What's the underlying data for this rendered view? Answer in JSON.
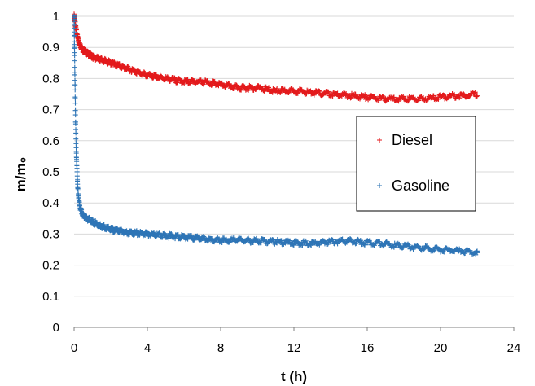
{
  "chart_data": {
    "type": "scatter",
    "title": "",
    "xlabel": "t (h)",
    "ylabel": "m/m₀",
    "xlim": [
      0,
      24
    ],
    "ylim": [
      0,
      1
    ],
    "xticks": [
      0,
      4,
      8,
      12,
      16,
      20,
      24
    ],
    "yticks": [
      0,
      0.1,
      0.2,
      0.3,
      0.4,
      0.5,
      0.6,
      0.7,
      0.8,
      0.9,
      1
    ],
    "grid": "horizontal",
    "legend_position": "right",
    "marker": "+",
    "series": [
      {
        "name": "Diesel",
        "color": "#e31a1c",
        "x": [
          0,
          0.1,
          0.2,
          0.3,
          0.5,
          0.75,
          1,
          1.5,
          2,
          2.5,
          3,
          3.5,
          4,
          5,
          6,
          7,
          8,
          9,
          10,
          11,
          12,
          13,
          14,
          15,
          16,
          17,
          18,
          19,
          20,
          21,
          22
        ],
        "y": [
          1.0,
          0.96,
          0.93,
          0.91,
          0.89,
          0.88,
          0.87,
          0.86,
          0.85,
          0.84,
          0.83,
          0.82,
          0.81,
          0.8,
          0.79,
          0.79,
          0.78,
          0.77,
          0.77,
          0.76,
          0.76,
          0.755,
          0.75,
          0.745,
          0.74,
          0.735,
          0.735,
          0.735,
          0.74,
          0.745,
          0.75
        ]
      },
      {
        "name": "Gasoline",
        "color": "#2e75b6",
        "x": [
          0,
          0.02,
          0.05,
          0.08,
          0.12,
          0.18,
          0.25,
          0.35,
          0.5,
          0.7,
          1,
          1.5,
          2,
          2.5,
          3,
          4,
          5,
          6,
          7,
          8,
          9,
          10,
          11,
          12,
          13,
          14,
          15,
          16,
          17,
          18,
          19,
          20,
          21,
          22
        ],
        "y": [
          1.0,
          0.9,
          0.78,
          0.66,
          0.56,
          0.47,
          0.41,
          0.38,
          0.36,
          0.35,
          0.34,
          0.325,
          0.315,
          0.31,
          0.305,
          0.3,
          0.295,
          0.29,
          0.285,
          0.28,
          0.28,
          0.278,
          0.275,
          0.272,
          0.27,
          0.275,
          0.278,
          0.272,
          0.268,
          0.262,
          0.255,
          0.25,
          0.245,
          0.24
        ]
      }
    ]
  }
}
